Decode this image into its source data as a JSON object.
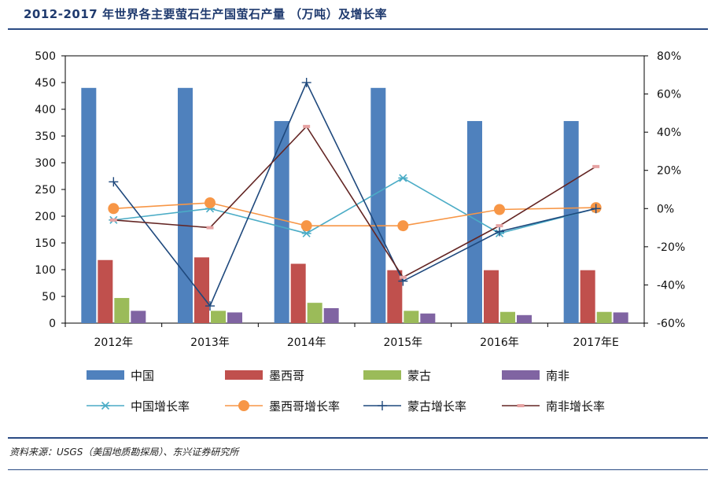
{
  "header": {
    "title": "2012-2017 年世界各主要萤石生产国萤石产量 （万吨）及增长率"
  },
  "footer": {
    "source": "资料来源：USGS（美国地质勘探局）、东兴证券研究所"
  },
  "chart_data": {
    "type": "bar+line",
    "title": "2012-2017 年世界各主要萤石生产国萤石产量 （万吨）及增长率",
    "categories": [
      "2012年",
      "2013年",
      "2014年",
      "2015年",
      "2016年",
      "2017年E"
    ],
    "left_axis": {
      "min": 0,
      "max": 500,
      "ticks": [
        "0",
        "50",
        "100",
        "150",
        "200",
        "250",
        "300",
        "350",
        "400",
        "450",
        "500"
      ]
    },
    "right_axis": {
      "min": -60,
      "max": 80,
      "ticks": [
        "-60%",
        "-40%",
        "-20%",
        "0%",
        "20%",
        "40%",
        "60%",
        "80%"
      ]
    },
    "bar_series": [
      {
        "name": "中国",
        "color": "#4f81bd",
        "values": [
          440,
          440,
          378,
          440,
          378,
          378
        ]
      },
      {
        "name": "墨西哥",
        "color": "#c0504d",
        "values": [
          118,
          123,
          111,
          99,
          99,
          99
        ]
      },
      {
        "name": "蒙古",
        "color": "#9bbb59",
        "values": [
          47,
          23,
          38,
          23,
          21,
          21
        ]
      },
      {
        "name": "南非",
        "color": "#8064a2",
        "values": [
          23,
          20,
          28,
          18,
          15,
          20
        ]
      }
    ],
    "line_series": [
      {
        "name": "中国增长率",
        "color": "#4bacc6",
        "marker": "star",
        "values": [
          -6,
          0,
          -13,
          16,
          -13,
          0
        ]
      },
      {
        "name": "墨西哥增长率",
        "color": "#f79646",
        "marker": "circle",
        "values": [
          0,
          3,
          -9,
          -9,
          -0.5,
          0.5
        ]
      },
      {
        "name": "蒙古增长率",
        "color": "#1f497d",
        "marker": "plus",
        "values": [
          14,
          -51,
          66,
          -38,
          -12,
          0
        ]
      },
      {
        "name": "南非增长率",
        "color": "#632523",
        "marker": "dash",
        "values": [
          -6,
          -10,
          43,
          -36,
          -9,
          22
        ]
      }
    ],
    "legend": {
      "position": "bottom",
      "items": [
        "中国",
        "墨西哥",
        "蒙古",
        "南非",
        "中国增长率",
        "墨西哥增长率",
        "蒙古增长率",
        "南非增长率"
      ]
    }
  }
}
